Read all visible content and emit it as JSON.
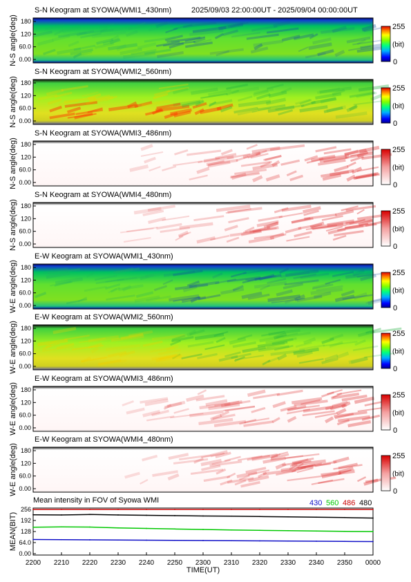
{
  "header": {
    "time_range": "2025/09/03 22:00:00UT - 2025/09/04 00:00:00UT"
  },
  "colorbar": {
    "max_label": "255",
    "unit_label": "(bit)",
    "min_label": "0"
  },
  "keograms": [
    {
      "title": "S-N Keogram at SYOWA(WMI1_430nm)",
      "ylabel": "N-S angle(deg)",
      "colormap": "rainbow",
      "yticks": [
        "180",
        "120",
        "60.0",
        "0.00"
      ]
    },
    {
      "title": "S-N Keogram at SYOWA(WMI2_560nm)",
      "ylabel": "N-S angle(deg)",
      "colormap": "rainbow",
      "yticks": [
        "180",
        "120",
        "60.0",
        "0.00"
      ]
    },
    {
      "title": "S-N Keogram at SYOWA(WMI3_486nm)",
      "ylabel": "N-S angle(deg)",
      "colormap": "reds",
      "yticks": [
        "180",
        "120",
        "60.0",
        "0.00"
      ]
    },
    {
      "title": "S-N Keogram at SYOWA(WMI4_480nm)",
      "ylabel": "N-S angle(deg)",
      "colormap": "reds",
      "yticks": [
        "180",
        "120",
        "60.0",
        "0.00"
      ]
    },
    {
      "title": "E-W Keogram at SYOWA(WMI1_430nm)",
      "ylabel": "W-E angle(deg)",
      "colormap": "rainbow",
      "yticks": [
        "180",
        "120",
        "60.0",
        "0.00"
      ]
    },
    {
      "title": "E-W Keogram at SYOWA(WMI2_560nm)",
      "ylabel": "W-E angle(deg)",
      "colormap": "rainbow",
      "yticks": [
        "180",
        "120",
        "60.0",
        "0.00"
      ]
    },
    {
      "title": "E-W Keogram at SYOWA(WMI3_486nm)",
      "ylabel": "W-E angle(deg)",
      "colormap": "reds",
      "yticks": [
        "180",
        "120",
        "60.0",
        "0.00"
      ]
    },
    {
      "title": "E-W Keogram at SYOWA(WMI4_480nm)",
      "ylabel": "W-E angle(deg)",
      "colormap": "reds",
      "yticks": [
        "180",
        "120",
        "60.0",
        "0.00"
      ]
    }
  ],
  "mean_panel": {
    "title": "Mean intensity in FOV of Syowa WMI",
    "ylabel": "MEAN(BIT)",
    "yticks": [
      "256",
      "192",
      "128",
      "64.0",
      "0.00"
    ],
    "legend": [
      {
        "label": "430",
        "color": "#1010c8"
      },
      {
        "label": "560",
        "color": "#00c800"
      },
      {
        "label": "486",
        "color": "#c80000"
      },
      {
        "label": "480",
        "color": "#000000"
      }
    ]
  },
  "xaxis": {
    "label": "TIME(UT)",
    "ticks": [
      "2200",
      "2210",
      "2220",
      "2230",
      "2240",
      "2250",
      "2300",
      "2310",
      "2320",
      "2330",
      "2340",
      "2350",
      "0000"
    ]
  },
  "chart_data": [
    {
      "type": "line",
      "title": "Mean intensity in FOV of Syowa WMI",
      "xlabel": "TIME(UT)",
      "ylabel": "MEAN(BIT)",
      "ylim": [
        0,
        256
      ],
      "x": [
        "2200",
        "2210",
        "2220",
        "2230",
        "2240",
        "2250",
        "2300",
        "2310",
        "2320",
        "2330",
        "2340",
        "2350",
        "0000"
      ],
      "series": [
        {
          "name": "430",
          "color": "#1010c8",
          "values": [
            82,
            81,
            80,
            79,
            78,
            77,
            76,
            75,
            74,
            73,
            72,
            71,
            70
          ]
        },
        {
          "name": "560",
          "color": "#00c800",
          "values": [
            153,
            155,
            154,
            149,
            146,
            143,
            140,
            137,
            135,
            133,
            131,
            129,
            128
          ]
        },
        {
          "name": "486",
          "color": "#c80000",
          "values": [
            256,
            256,
            256,
            256,
            256,
            256,
            256,
            256,
            256,
            256,
            256,
            256,
            256
          ]
        },
        {
          "name": "480",
          "color": "#000000",
          "values": [
            225,
            224,
            227,
            224,
            222,
            220,
            218,
            217,
            215,
            213,
            211,
            209,
            206
          ]
        }
      ]
    }
  ]
}
